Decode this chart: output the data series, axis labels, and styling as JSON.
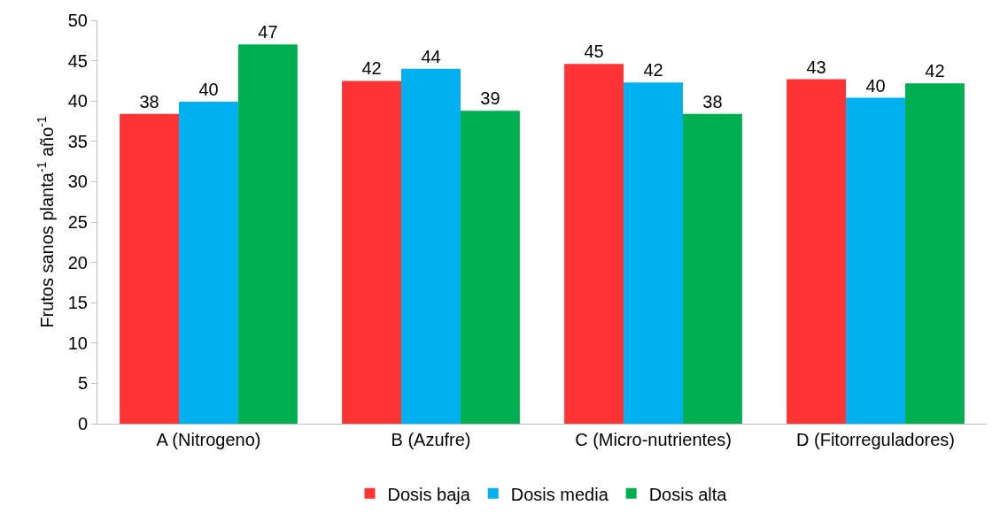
{
  "chart_data": {
    "type": "bar",
    "ylabel": "Frutos sanos planta$^{-1}$ año$^{-1}$",
    "categories": [
      "A (Nitrogeno)",
      "B (Azufre)",
      "C (Micro-nutrientes)",
      "D (Fitorreguladores)"
    ],
    "series": [
      {
        "name": "Dosis baja",
        "color": "#ff3333",
        "values": [
          38.4,
          42.5,
          44.6,
          42.7
        ],
        "value_labels": [
          "38",
          "42",
          "45",
          "43"
        ]
      },
      {
        "name": "Dosis media",
        "color": "#00b0f0",
        "values": [
          39.9,
          44.0,
          42.3,
          40.4
        ],
        "value_labels": [
          "40",
          "44",
          "42",
          "40"
        ]
      },
      {
        "name": "Dosis alta",
        "color": "#00b050",
        "values": [
          47.0,
          38.8,
          38.4,
          42.2
        ],
        "value_labels": [
          "47",
          "39",
          "38",
          "42"
        ]
      }
    ],
    "ylim": [
      0,
      50
    ],
    "yticks": [
      0,
      5,
      10,
      15,
      20,
      25,
      30,
      35,
      40,
      45,
      50
    ],
    "grid": false,
    "legend": "bottom"
  }
}
